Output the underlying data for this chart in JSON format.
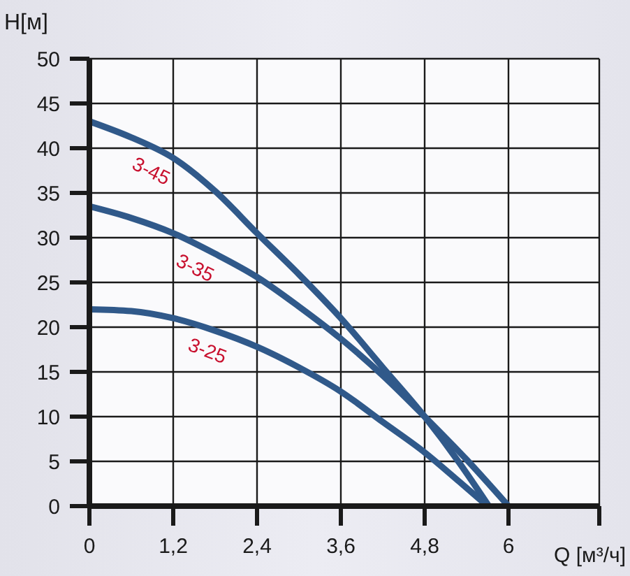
{
  "chart_data": {
    "type": "line",
    "xlabel": "Q [м³/ч]",
    "ylabel": "H[м]",
    "xlim": [
      0,
      7.3
    ],
    "xticks": [
      0,
      {
        "value": 1.2,
        "label": "1,2"
      },
      {
        "value": 2.4,
        "label": "2,4"
      },
      {
        "value": 3.6,
        "label": "3,6"
      },
      {
        "value": 4.8,
        "label": "4,8"
      },
      6,
      {
        "value": 7.3,
        "label": null
      }
    ],
    "ylim": [
      0,
      50
    ],
    "yticks": [
      0,
      5,
      10,
      15,
      20,
      25,
      30,
      35,
      40,
      45,
      50
    ],
    "grid": true,
    "legend": false,
    "marker": "none",
    "line_style": "solid",
    "series": [
      {
        "name": "3-45",
        "color": "#30598a",
        "x": [
          0,
          0.6,
          1.2,
          1.8,
          2.4,
          3.0,
          3.6,
          4.2,
          4.8,
          5.3,
          5.72
        ],
        "values": [
          43,
          41.2,
          38.9,
          35.2,
          30.5,
          25.9,
          21,
          15.5,
          10,
          4.8,
          0
        ]
      },
      {
        "name": "3-35",
        "color": "#30598a",
        "x": [
          0,
          0.6,
          1.2,
          1.8,
          2.4,
          3.0,
          3.6,
          4.2,
          4.8,
          5.4,
          6.0
        ],
        "values": [
          33.5,
          32.2,
          30.5,
          28.2,
          25.6,
          22.3,
          18.7,
          14.6,
          10,
          5.2,
          0
        ]
      },
      {
        "name": "3-25",
        "color": "#30598a",
        "x": [
          0,
          0.6,
          1.2,
          1.8,
          2.4,
          3.0,
          3.6,
          4.2,
          4.8,
          5.3,
          5.7
        ],
        "values": [
          22,
          21.8,
          21,
          19.6,
          17.8,
          15.5,
          12.8,
          9.4,
          6,
          2.7,
          0
        ]
      }
    ]
  }
}
